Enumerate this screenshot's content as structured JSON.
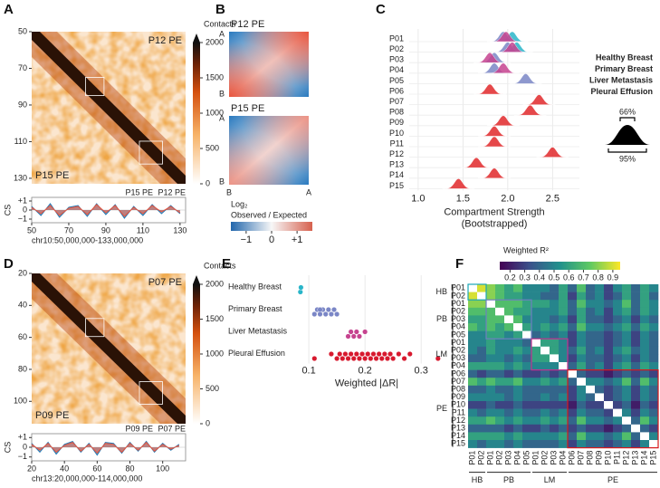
{
  "chart_data": [
    {
      "type": "heatmap",
      "panel": "A",
      "labels": [
        "P12 PE",
        "P15 PE"
      ],
      "ylim": [
        50,
        133
      ],
      "yticks": [
        50,
        70,
        90,
        110,
        130
      ],
      "colorbar_title": "Contacts",
      "clim": [
        0,
        2000
      ],
      "cticks": [
        0,
        500,
        1000,
        1500,
        2000
      ]
    },
    {
      "type": "line",
      "ylabel": "CS",
      "xlabel": "chr10:50,000,000-133,000,000",
      "x": [
        50,
        55,
        60,
        65,
        70,
        75,
        80,
        85,
        90,
        95,
        100,
        105,
        110,
        115,
        120,
        125,
        130
      ],
      "series": [
        {
          "name": "P15 PE",
          "color": "#e8553e",
          "values": [
            0.3,
            -0.4,
            0.5,
            -0.6,
            0.2,
            0.4,
            -0.5,
            0.6,
            -0.3,
            0.5,
            -0.7,
            0.3,
            -0.4,
            0.5,
            -0.2,
            0.4,
            -0.3
          ]
        },
        {
          "name": "P12 PE",
          "color": "#1f78b4",
          "values": [
            0.4,
            -0.6,
            0.7,
            -0.8,
            0.3,
            0.5,
            -0.7,
            0.7,
            -0.5,
            0.6,
            -0.9,
            0.4,
            -0.6,
            0.6,
            -0.4,
            0.5,
            -0.4
          ]
        }
      ],
      "xlim": [
        50,
        133
      ],
      "xticks": [
        50,
        70,
        90,
        110,
        130
      ],
      "ylim": [
        -1.4,
        1.4
      ],
      "yticks": [
        {
          "value": 1,
          "label": "+1"
        },
        0,
        {
          "value": -1,
          "label": "−1"
        }
      ]
    },
    {
      "type": "heatmap",
      "panel": "D",
      "labels": [
        "P07 PE",
        "P09 PE"
      ],
      "ylim": [
        20,
        114
      ],
      "yticks": [
        20,
        40,
        60,
        80,
        100
      ],
      "colorbar_title": "Contacts",
      "clim": [
        0,
        2000
      ],
      "cticks": [
        0,
        500,
        1000,
        1500,
        2000
      ]
    },
    {
      "type": "line",
      "ylabel": "CS",
      "xlabel": "chr13:20,000,000-114,000,000",
      "x": [
        20,
        25,
        30,
        35,
        40,
        45,
        50,
        55,
        60,
        65,
        70,
        75,
        80,
        85,
        90,
        95,
        100,
        105,
        110
      ],
      "series": [
        {
          "name": "P09 PE",
          "color": "#e8553e",
          "values": [
            0.3,
            -0.3,
            0.4,
            -0.5,
            0.2,
            0.5,
            -0.4,
            0.3,
            -0.6,
            0.4,
            0.3,
            -0.5,
            0.4,
            -0.3,
            0.5,
            -0.4,
            0.3,
            -0.2,
            0.2
          ]
        },
        {
          "name": "P07 PE",
          "color": "#1f78b4",
          "values": [
            0.4,
            -0.5,
            0.5,
            -0.7,
            0.3,
            0.6,
            -0.5,
            0.4,
            -0.8,
            0.5,
            0.4,
            -0.6,
            0.5,
            -0.4,
            0.6,
            -0.5,
            0.4,
            -0.3,
            0.3
          ]
        }
      ],
      "xlim": [
        20,
        114
      ],
      "xticks": [
        20,
        40,
        60,
        80,
        100
      ],
      "ylim": [
        -1.4,
        1.4
      ],
      "yticks": [
        {
          "value": 1,
          "label": "+1"
        },
        0,
        {
          "value": -1,
          "label": "−1"
        }
      ]
    },
    {
      "type": "saddle",
      "panel": "B",
      "titles": [
        "P12 PE",
        "P15 PE"
      ],
      "row_labels": [
        "A",
        "B"
      ],
      "col_labels": [
        "B",
        "A"
      ],
      "colorbar_title": [
        "Log₂",
        "Observed / Expected"
      ],
      "clim": [
        -1.6,
        1.6
      ],
      "cticks": [
        {
          "value": -1,
          "label": "−1"
        },
        0,
        {
          "value": 1,
          "label": "+1"
        }
      ]
    },
    {
      "type": "ridgeline",
      "panel": "C",
      "categories": [
        "P01",
        "P02",
        "P03",
        "P04",
        "P05",
        "P06",
        "P07",
        "P08",
        "P09",
        "P10",
        "P11",
        "P12",
        "P13",
        "P14",
        "P15"
      ],
      "series": [
        {
          "name": "Healthy Breast",
          "color": "#29b5c9",
          "values": [
            2.05,
            2.1,
            null,
            null,
            null,
            null,
            null,
            null,
            null,
            null,
            null,
            null,
            null,
            null,
            null
          ]
        },
        {
          "name": "Primary Breast",
          "color": "#7a86c6",
          "values": [
            1.95,
            2.0,
            1.85,
            1.85,
            2.2,
            null,
            null,
            null,
            null,
            null,
            null,
            null,
            null,
            null,
            null
          ]
        },
        {
          "name": "Liver Metastasis",
          "color": "#c6438f",
          "values": [
            1.98,
            2.05,
            1.8,
            1.95,
            null,
            null,
            null,
            null,
            null,
            null,
            null,
            null,
            null,
            null,
            null
          ]
        },
        {
          "name": "Pleural Effusion",
          "color": "#e0282a",
          "values": [
            null,
            null,
            null,
            null,
            null,
            1.8,
            2.35,
            2.25,
            1.95,
            1.85,
            1.85,
            2.5,
            1.65,
            1.85,
            1.45
          ]
        }
      ],
      "xlim": [
        0.9,
        2.8
      ],
      "xticks": [
        {
          "value": 1,
          "label": "1.0"
        },
        1.5,
        {
          "value": 2,
          "label": "2.0"
        },
        2.5
      ],
      "xlabel": [
        "Compartment Strength",
        "(Bootstrapped)"
      ],
      "annotations": [
        "66%",
        "95%"
      ]
    },
    {
      "type": "strip",
      "panel": "E",
      "series": [
        {
          "name": "Healthy Breast",
          "color": "#29b5c9",
          "values": [
            0.085,
            0.086
          ]
        },
        {
          "name": "Primary Breast",
          "color": "#7a86c6",
          "values": [
            0.11,
            0.115,
            0.12,
            0.125,
            0.13,
            0.135,
            0.14,
            0.145,
            0.15,
            0.12
          ]
        },
        {
          "name": "Liver Metastasis",
          "color": "#c6438f",
          "values": [
            0.17,
            0.175,
            0.18,
            0.185,
            0.19,
            0.2
          ]
        },
        {
          "name": "Pleural Effusion",
          "color": "#d7192e",
          "values": [
            0.11,
            0.14,
            0.15,
            0.155,
            0.16,
            0.165,
            0.17,
            0.175,
            0.18,
            0.185,
            0.19,
            0.195,
            0.2,
            0.205,
            0.21,
            0.215,
            0.22,
            0.225,
            0.23,
            0.235,
            0.24,
            0.245,
            0.25,
            0.26,
            0.27,
            0.28,
            0.33
          ]
        }
      ],
      "xlim": [
        0.066,
        0.34
      ],
      "xticks": [
        0.1,
        0.2,
        0.3
      ],
      "xlabel": "Weighted |ΔR|"
    },
    {
      "type": "matrix",
      "panel": "F",
      "colorbar_title": "Weighted R²",
      "clim": [
        0.13,
        0.95
      ],
      "cticks": [
        0.2,
        0.3,
        0.4,
        0.5,
        0.6,
        0.7,
        0.8,
        0.9
      ],
      "groups": [
        {
          "name": "HB",
          "color": "#1aa6b7",
          "members": [
            "P01",
            "P02"
          ]
        },
        {
          "name": "PB",
          "color": "#6e7fc0",
          "members": [
            "P01",
            "P02",
            "P03",
            "P04",
            "P05"
          ]
        },
        {
          "name": "LM",
          "color": "#c2338f",
          "members": [
            "P01",
            "P02",
            "P03",
            "P04"
          ]
        },
        {
          "name": "PE",
          "color": "#d7191c",
          "members": [
            "P06",
            "P07",
            "P08",
            "P09",
            "P10",
            "P11",
            "P12",
            "P13",
            "P14",
            "P15"
          ]
        }
      ],
      "values": [
        [
          null,
          0.9,
          0.8,
          0.7,
          0.6,
          0.7,
          0.5,
          0.5,
          0.5,
          0.4,
          0.6,
          0.4,
          0.7,
          0.4,
          0.5,
          0.3,
          0.5,
          0.6,
          0.4,
          0.6,
          0.5
        ],
        [
          0.9,
          null,
          0.8,
          0.7,
          0.6,
          0.6,
          0.5,
          0.5,
          0.4,
          0.4,
          0.6,
          0.3,
          0.6,
          0.4,
          0.5,
          0.3,
          0.4,
          0.6,
          0.4,
          0.6,
          0.4
        ],
        [
          0.8,
          0.8,
          null,
          0.7,
          0.7,
          0.7,
          0.6,
          0.6,
          0.6,
          0.5,
          0.6,
          0.4,
          0.7,
          0.5,
          0.5,
          0.4,
          0.5,
          0.7,
          0.4,
          0.6,
          0.5
        ],
        [
          0.7,
          0.7,
          0.7,
          null,
          0.7,
          0.6,
          0.6,
          0.5,
          0.5,
          0.5,
          0.6,
          0.4,
          0.6,
          0.4,
          0.5,
          0.3,
          0.5,
          0.6,
          0.4,
          0.6,
          0.5
        ],
        [
          0.6,
          0.6,
          0.7,
          0.7,
          null,
          0.7,
          0.5,
          0.5,
          0.5,
          0.4,
          0.5,
          0.3,
          0.6,
          0.4,
          0.4,
          0.3,
          0.4,
          0.5,
          0.3,
          0.5,
          0.4
        ],
        [
          0.7,
          0.6,
          0.7,
          0.6,
          0.7,
          null,
          0.6,
          0.5,
          0.6,
          0.5,
          0.6,
          0.4,
          0.7,
          0.5,
          0.5,
          0.4,
          0.5,
          0.6,
          0.4,
          0.6,
          0.5
        ],
        [
          0.5,
          0.5,
          0.6,
          0.6,
          0.5,
          0.6,
          null,
          0.4,
          0.5,
          0.4,
          0.5,
          0.3,
          0.5,
          0.4,
          0.4,
          0.3,
          0.4,
          0.5,
          0.3,
          0.5,
          0.4
        ],
        [
          0.5,
          0.5,
          0.6,
          0.5,
          0.5,
          0.5,
          0.4,
          null,
          0.6,
          0.6,
          0.5,
          0.3,
          0.5,
          0.4,
          0.4,
          0.3,
          0.4,
          0.5,
          0.3,
          0.5,
          0.4
        ],
        [
          0.5,
          0.4,
          0.6,
          0.5,
          0.5,
          0.6,
          0.5,
          0.6,
          null,
          0.6,
          0.5,
          0.4,
          0.6,
          0.4,
          0.5,
          0.3,
          0.5,
          0.6,
          0.4,
          0.5,
          0.4
        ],
        [
          0.4,
          0.4,
          0.5,
          0.5,
          0.4,
          0.5,
          0.4,
          0.6,
          0.6,
          null,
          0.5,
          0.3,
          0.5,
          0.4,
          0.4,
          0.3,
          0.4,
          0.5,
          0.3,
          0.5,
          0.4
        ],
        [
          0.6,
          0.6,
          0.6,
          0.6,
          0.5,
          0.6,
          0.5,
          0.5,
          0.5,
          0.5,
          null,
          0.4,
          0.6,
          0.4,
          0.5,
          0.3,
          0.5,
          0.6,
          0.4,
          0.6,
          0.5
        ],
        [
          0.4,
          0.3,
          0.4,
          0.4,
          0.3,
          0.4,
          0.3,
          0.3,
          0.4,
          0.3,
          0.4,
          null,
          0.4,
          0.3,
          0.3,
          0.2,
          0.3,
          0.4,
          0.3,
          0.4,
          0.3
        ],
        [
          0.7,
          0.6,
          0.7,
          0.6,
          0.6,
          0.7,
          0.5,
          0.5,
          0.6,
          0.5,
          0.6,
          0.4,
          null,
          0.5,
          0.5,
          0.4,
          0.5,
          0.7,
          0.4,
          0.7,
          0.5
        ],
        [
          0.4,
          0.4,
          0.5,
          0.4,
          0.4,
          0.5,
          0.4,
          0.4,
          0.4,
          0.4,
          0.4,
          0.3,
          0.5,
          null,
          0.4,
          0.3,
          0.4,
          0.5,
          0.3,
          0.5,
          0.4
        ],
        [
          0.5,
          0.5,
          0.5,
          0.5,
          0.4,
          0.5,
          0.4,
          0.4,
          0.5,
          0.4,
          0.5,
          0.3,
          0.5,
          0.4,
          null,
          0.3,
          0.4,
          0.5,
          0.3,
          0.5,
          0.4
        ],
        [
          0.3,
          0.3,
          0.4,
          0.3,
          0.3,
          0.4,
          0.3,
          0.3,
          0.3,
          0.3,
          0.3,
          0.2,
          0.4,
          0.3,
          0.3,
          null,
          0.3,
          0.4,
          0.2,
          0.4,
          0.3
        ],
        [
          0.5,
          0.4,
          0.5,
          0.5,
          0.4,
          0.5,
          0.4,
          0.4,
          0.5,
          0.4,
          0.5,
          0.3,
          0.5,
          0.4,
          0.4,
          0.3,
          null,
          0.5,
          0.3,
          0.5,
          0.4
        ],
        [
          0.6,
          0.6,
          0.7,
          0.6,
          0.5,
          0.6,
          0.5,
          0.5,
          0.6,
          0.5,
          0.6,
          0.4,
          0.7,
          0.5,
          0.5,
          0.4,
          0.5,
          null,
          0.4,
          0.7,
          0.5
        ],
        [
          0.4,
          0.4,
          0.4,
          0.4,
          0.3,
          0.4,
          0.3,
          0.3,
          0.4,
          0.3,
          0.4,
          0.3,
          0.4,
          0.3,
          0.3,
          0.2,
          0.3,
          0.4,
          null,
          0.4,
          0.3
        ],
        [
          0.6,
          0.6,
          0.6,
          0.6,
          0.5,
          0.6,
          0.5,
          0.5,
          0.5,
          0.5,
          0.6,
          0.4,
          0.7,
          0.5,
          0.5,
          0.4,
          0.5,
          0.7,
          0.4,
          null,
          0.5
        ],
        [
          0.5,
          0.4,
          0.5,
          0.5,
          0.4,
          0.5,
          0.4,
          0.4,
          0.4,
          0.4,
          0.5,
          0.3,
          0.5,
          0.4,
          0.4,
          0.3,
          0.4,
          0.5,
          0.3,
          0.5,
          null
        ]
      ]
    }
  ]
}
